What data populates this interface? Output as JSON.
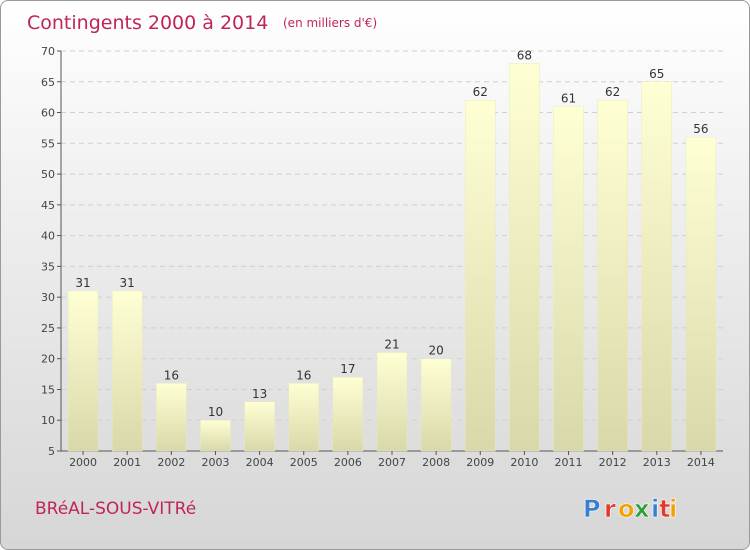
{
  "chart_data": {
    "type": "bar",
    "title": "Contingents 2000 à 2014",
    "subtitle": "(en milliers d'€)",
    "xlabel": "",
    "ylabel": "",
    "categories": [
      "2000",
      "2001",
      "2002",
      "2003",
      "2004",
      "2005",
      "2006",
      "2007",
      "2008",
      "2009",
      "2010",
      "2011",
      "2012",
      "2013",
      "2014"
    ],
    "values": [
      31,
      31,
      16,
      10,
      13,
      16,
      17,
      21,
      20,
      62,
      68,
      61,
      62,
      65,
      56
    ],
    "ylim": [
      5,
      70
    ],
    "yticks": [
      5,
      10,
      15,
      20,
      25,
      30,
      35,
      40,
      45,
      50,
      55,
      60,
      65,
      70
    ],
    "grid": true,
    "legend": "none"
  },
  "footer": {
    "commune": "BRéAL-SOUS-VITRé",
    "brand_letters": [
      "P",
      "r",
      "o",
      "x",
      "i",
      "t",
      "i"
    ]
  },
  "colors": {
    "title": "#c0245c",
    "bar_top": "#ffffd4",
    "bar_bottom": "#d8d8aa",
    "brand": [
      "#3a7fcf",
      "#e2392e",
      "#f2a100",
      "#2e9f3a",
      "#3a7fcf",
      "#e2392e",
      "#f2a100"
    ]
  }
}
